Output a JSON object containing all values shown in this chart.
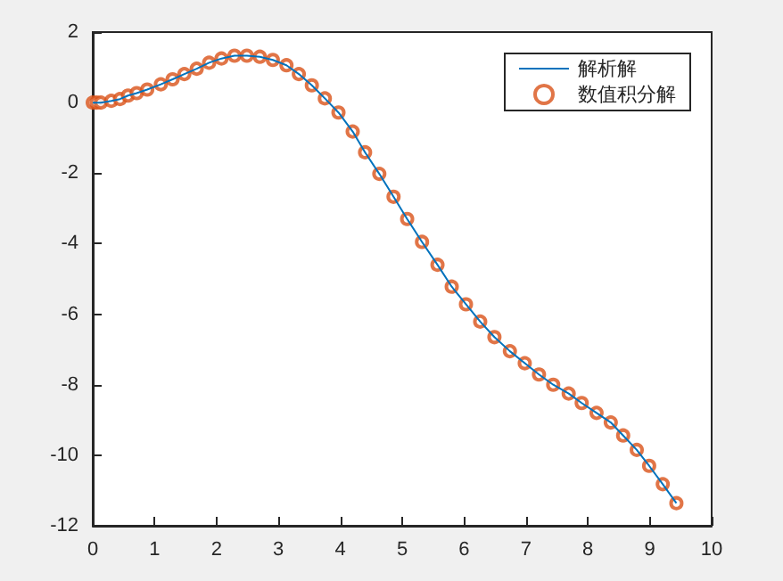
{
  "chart_data": {
    "type": "line",
    "xlim": [
      0,
      10
    ],
    "xticks": [
      0,
      1,
      2,
      3,
      4,
      5,
      6,
      7,
      8,
      9,
      10
    ],
    "ylim": [
      -12,
      2
    ],
    "yticks": [
      -12,
      -10,
      -8,
      -6,
      -4,
      -2,
      0,
      2
    ],
    "grid": false,
    "legend": "top right",
    "x": [
      0,
      0.06,
      0.13,
      0.3,
      0.44,
      0.57,
      0.71,
      0.88,
      1.1,
      1.29,
      1.48,
      1.68,
      1.88,
      2.08,
      2.29,
      2.49,
      2.7,
      2.91,
      3.13,
      3.33,
      3.54,
      3.75,
      3.97,
      4.2,
      4.4,
      4.63,
      4.86,
      5.08,
      5.32,
      5.57,
      5.8,
      6.03,
      6.26,
      6.49,
      6.74,
      6.98,
      7.21,
      7.44,
      7.69,
      7.9,
      8.14,
      8.37,
      8.57,
      8.79,
      8.99,
      9.21,
      9.43
    ],
    "series": [
      {
        "name": "解析解",
        "color": "#0072bd",
        "marker": "none",
        "values": [
          0,
          0,
          0,
          0.05,
          0.1,
          0.2,
          0.27,
          0.37,
          0.52,
          0.66,
          0.81,
          0.96,
          1.13,
          1.25,
          1.33,
          1.33,
          1.3,
          1.21,
          1.06,
          0.81,
          0.49,
          0.12,
          -0.28,
          -0.82,
          -1.41,
          -2.02,
          -2.67,
          -3.3,
          -3.95,
          -4.6,
          -5.22,
          -5.72,
          -6.21,
          -6.65,
          -7.05,
          -7.39,
          -7.71,
          -8.0,
          -8.25,
          -8.52,
          -8.8,
          -9.07,
          -9.44,
          -9.85,
          -10.3,
          -10.82,
          -11.36
        ]
      },
      {
        "name": "数值积分解",
        "type": "scatter",
        "color": "#d95319",
        "marker": "circle",
        "values": [
          0,
          0,
          0,
          0.05,
          0.1,
          0.2,
          0.27,
          0.37,
          0.52,
          0.66,
          0.81,
          0.96,
          1.13,
          1.25,
          1.33,
          1.33,
          1.3,
          1.21,
          1.06,
          0.81,
          0.49,
          0.12,
          -0.28,
          -0.82,
          -1.41,
          -2.02,
          -2.67,
          -3.3,
          -3.95,
          -4.6,
          -5.22,
          -5.72,
          -6.21,
          -6.65,
          -7.05,
          -7.39,
          -7.71,
          -8.0,
          -8.25,
          -8.52,
          -8.8,
          -9.07,
          -9.44,
          -9.85,
          -10.3,
          -10.82,
          -11.36
        ]
      }
    ]
  }
}
